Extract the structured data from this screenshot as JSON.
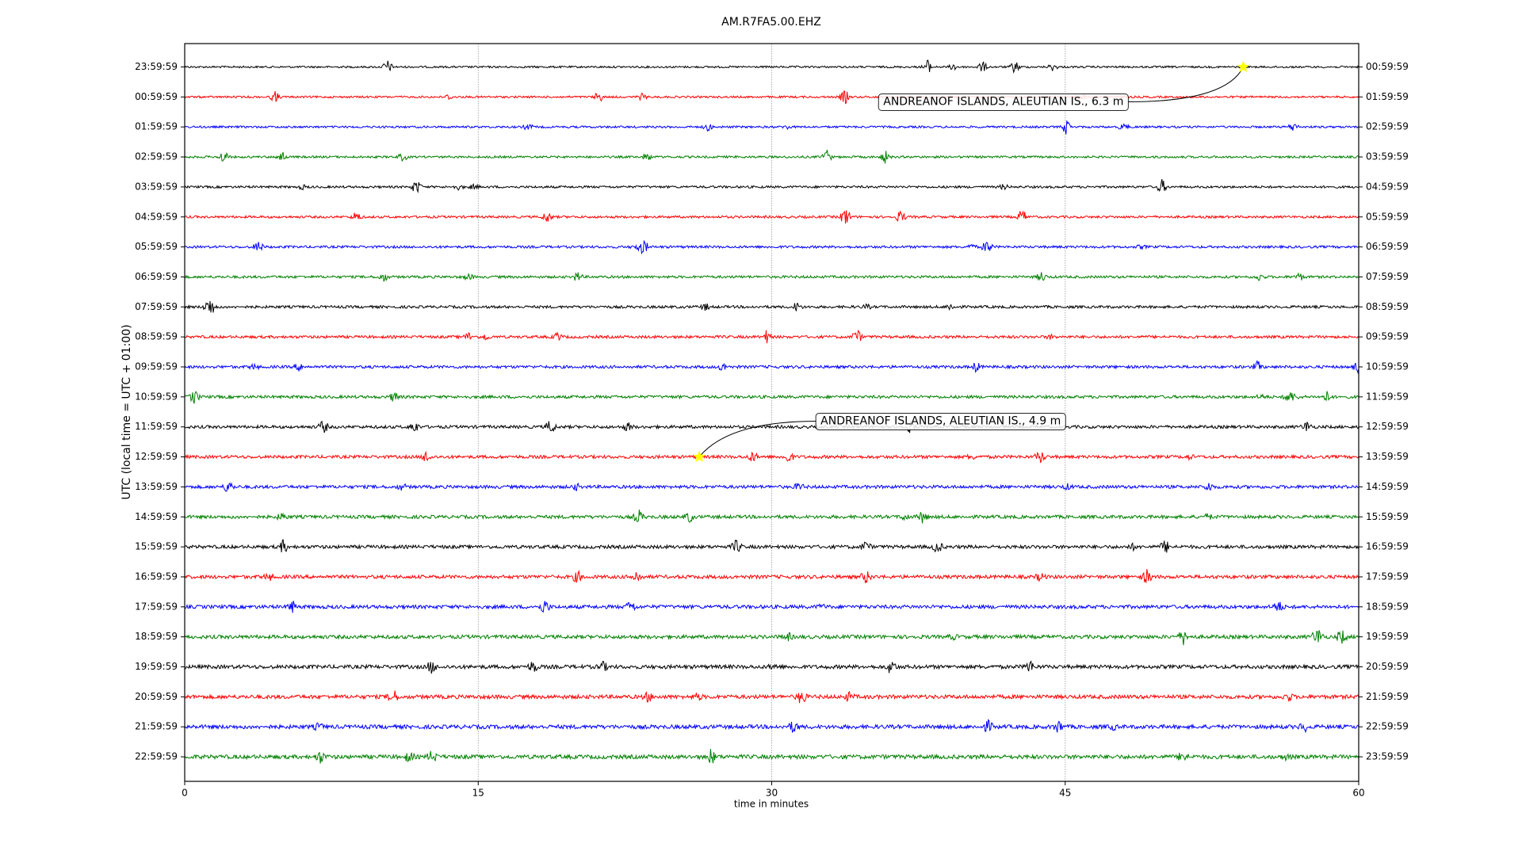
{
  "chart_data": {
    "type": "helicorder",
    "title": "AM.R7FA5.00.EHZ",
    "xlabel": "time in minutes",
    "ylabel": "UTC (local time = UTC + 01:00)",
    "xlim": [
      0,
      60
    ],
    "xticks": [
      0,
      15,
      30,
      45,
      60
    ],
    "grid": true,
    "colors": [
      "#000000",
      "#ff0000",
      "#0000ff",
      "#008000"
    ],
    "categories": [
      "23:59:59",
      "00:59:59",
      "01:59:59",
      "02:59:59",
      "03:59:59",
      "04:59:59",
      "05:59:59",
      "06:59:59",
      "07:59:59",
      "08:59:59",
      "09:59:59",
      "10:59:59",
      "11:59:59",
      "12:59:59",
      "13:59:59",
      "14:59:59",
      "15:59:59",
      "16:59:59",
      "17:59:59",
      "18:59:59",
      "19:59:59",
      "20:59:59",
      "21:59:59",
      "22:59:59"
    ],
    "right_labels": [
      "00:59:59",
      "01:59:59",
      "02:59:59",
      "03:59:59",
      "04:59:59",
      "05:59:59",
      "06:59:59",
      "07:59:59",
      "08:59:59",
      "09:59:59",
      "10:59:59",
      "11:59:59",
      "12:59:59",
      "13:59:59",
      "14:59:59",
      "15:59:59",
      "16:59:59",
      "17:59:59",
      "18:59:59",
      "19:59:59",
      "20:59:59",
      "21:59:59",
      "22:59:59",
      "23:59:59"
    ],
    "events": [
      {
        "label": "ANDREANOF ISLANDS, ALEUTIAN IS., 6.3 m",
        "trace": "23:59:59",
        "x": 54.1
      },
      {
        "label": "ANDREANOF ISLANDS, ALEUTIAN IS., 4.9 m",
        "trace": "12:59:59",
        "x": 26.3
      }
    ]
  }
}
